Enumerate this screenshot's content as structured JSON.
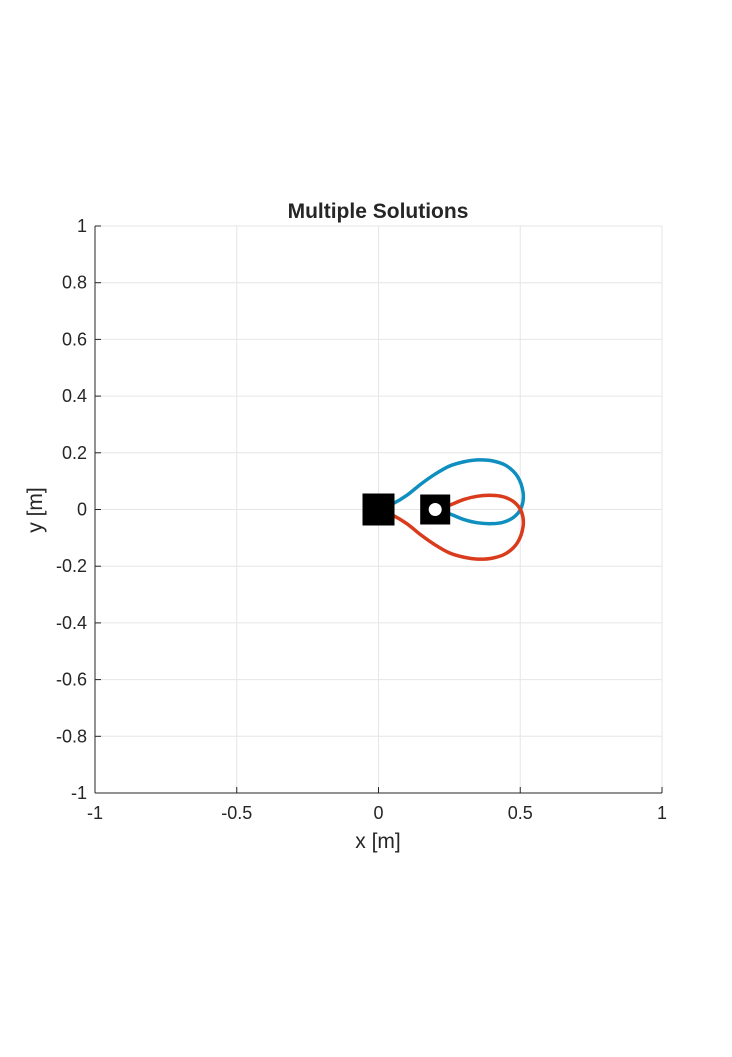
{
  "chart_data": {
    "type": "line",
    "title": "Multiple Solutions",
    "xlabel": "x [m]",
    "ylabel": "y [m]",
    "xlim": [
      -1,
      1
    ],
    "ylim": [
      -1,
      1
    ],
    "grid": true,
    "x_ticks": [
      -1,
      -0.5,
      0,
      0.5,
      1
    ],
    "x_tick_labels": [
      "-1",
      "-0.5",
      "0",
      "0.5",
      "1"
    ],
    "y_ticks": [
      1,
      0.8,
      0.6,
      0.4,
      0.2,
      0,
      -0.2,
      -0.4,
      -0.6,
      -0.8,
      -1
    ],
    "y_tick_labels": [
      "1",
      "0.8",
      "0.6",
      "0.4",
      "0.2",
      "0",
      "-0.2",
      "-0.4",
      "-0.6",
      "-0.8",
      "-1"
    ],
    "colors": {
      "axis": "#262626",
      "grid": "#e6e6e6",
      "series_1": "#0f8fbf",
      "series_2": "#d93b1c",
      "markers": "#000000",
      "marker_dot": "#ffffff"
    },
    "series": [
      {
        "color": "#0f8fbf",
        "points": [
          [
            0.0,
            0.0
          ],
          [
            0.05,
            0.02
          ],
          [
            0.1,
            0.05
          ],
          [
            0.15,
            0.09
          ],
          [
            0.2,
            0.125
          ],
          [
            0.25,
            0.153
          ],
          [
            0.3,
            0.168
          ],
          [
            0.35,
            0.175
          ],
          [
            0.4,
            0.172
          ],
          [
            0.45,
            0.155
          ],
          [
            0.49,
            0.117
          ],
          [
            0.51,
            0.06
          ],
          [
            0.505,
            0.01
          ],
          [
            0.48,
            -0.025
          ],
          [
            0.44,
            -0.045
          ],
          [
            0.4,
            -0.05
          ],
          [
            0.35,
            -0.047
          ],
          [
            0.3,
            -0.035
          ],
          [
            0.25,
            -0.015
          ],
          [
            0.2,
            0.0
          ]
        ]
      },
      {
        "color": "#d93b1c",
        "points": [
          [
            0.0,
            0.0
          ],
          [
            0.05,
            -0.02
          ],
          [
            0.1,
            -0.05
          ],
          [
            0.15,
            -0.09
          ],
          [
            0.2,
            -0.125
          ],
          [
            0.25,
            -0.153
          ],
          [
            0.3,
            -0.168
          ],
          [
            0.35,
            -0.175
          ],
          [
            0.4,
            -0.172
          ],
          [
            0.45,
            -0.155
          ],
          [
            0.49,
            -0.117
          ],
          [
            0.51,
            -0.06
          ],
          [
            0.505,
            -0.01
          ],
          [
            0.48,
            0.025
          ],
          [
            0.44,
            0.045
          ],
          [
            0.4,
            0.05
          ],
          [
            0.35,
            0.047
          ],
          [
            0.3,
            0.035
          ],
          [
            0.25,
            0.015
          ],
          [
            0.2,
            0.0
          ]
        ]
      }
    ],
    "markers": [
      {
        "x": 0.0,
        "y": 0.0,
        "shape": "filled-square"
      },
      {
        "x": 0.2,
        "y": 0.0,
        "shape": "square-with-dot"
      }
    ]
  }
}
